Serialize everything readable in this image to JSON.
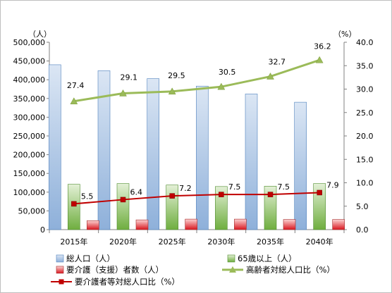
{
  "chart_data": {
    "type": "bar",
    "categories": [
      "2015年",
      "2020年",
      "2025年",
      "2030年",
      "2035年",
      "2040年"
    ],
    "left_axis": {
      "unit": "（人）",
      "ylim": [
        0,
        500000
      ],
      "ticks": [
        "0",
        "50,000",
        "100,000",
        "150,000",
        "200,000",
        "250,000",
        "300,000",
        "350,000",
        "400,000",
        "450,000",
        "500,000"
      ]
    },
    "right_axis": {
      "unit": "（%）",
      "ylim": [
        0,
        40
      ],
      "ticks": [
        "0.0",
        "5.0",
        "10.0",
        "15.0",
        "20.0",
        "25.0",
        "30.0",
        "35.0",
        "40.0"
      ]
    },
    "series": [
      {
        "name": "総人口（人）",
        "kind": "bar",
        "axis": "left",
        "color": "#95b3d7",
        "values": [
          440000,
          424000,
          403000,
          383000,
          362000,
          340000
        ]
      },
      {
        "name": "65歳以上（人）",
        "kind": "bar",
        "axis": "left",
        "color": "#77b255",
        "values": [
          121000,
          123000,
          119000,
          115000,
          116000,
          123000
        ]
      },
      {
        "name": "要介護（支援）者数（人）",
        "kind": "bar",
        "axis": "left",
        "color": "#e8333f",
        "values": [
          24000,
          26000,
          28000,
          28000,
          27000,
          27000
        ]
      },
      {
        "name": "高齢者対総人口比（%）",
        "kind": "line",
        "axis": "right",
        "color": "#9bbb59",
        "marker": "triangle",
        "values": [
          27.4,
          29.1,
          29.5,
          30.5,
          32.7,
          36.2
        ],
        "labels": [
          "27.4",
          "29.1",
          "29.5",
          "30.5",
          "32.7",
          "36.2"
        ]
      },
      {
        "name": "要介護者等対総人口比（%）",
        "kind": "line",
        "axis": "right",
        "color": "#c00000",
        "marker": "square",
        "values": [
          5.5,
          6.4,
          7.2,
          7.5,
          7.5,
          7.9
        ],
        "labels": [
          "5.5",
          "6.4",
          "7.2",
          "7.5",
          "7.5",
          "7.9"
        ]
      }
    ],
    "grid": false,
    "legend_position": "bottom"
  }
}
